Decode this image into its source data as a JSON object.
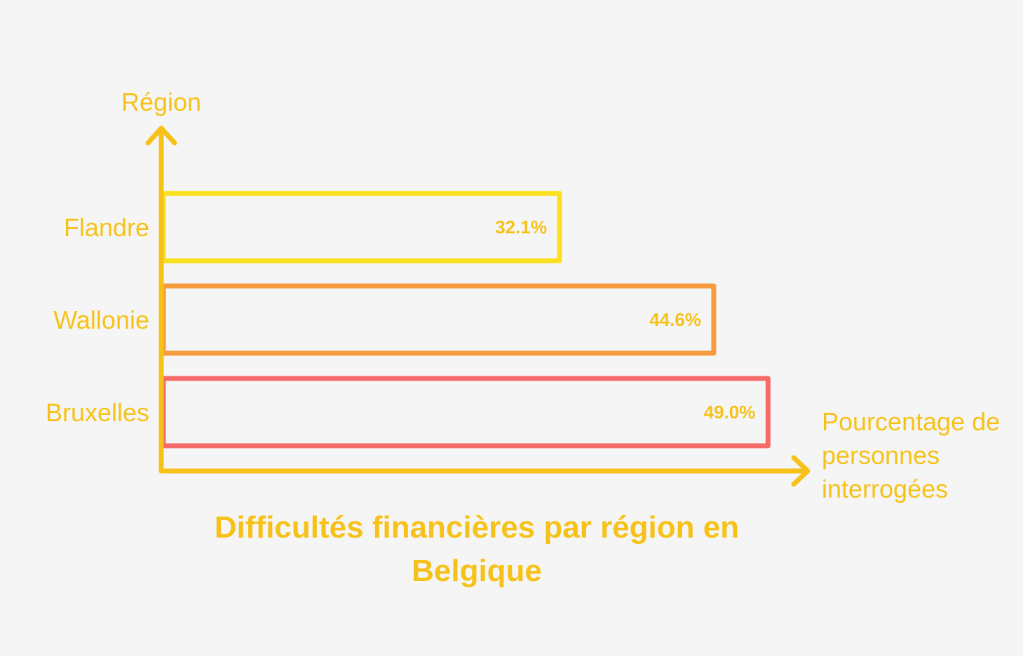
{
  "chart_data": {
    "type": "bar",
    "orientation": "horizontal",
    "title": "Difficultés financières par région en Belgique",
    "ylabel": "Région",
    "xlabel": "Pourcentage de personnes interrogées",
    "categories": [
      "Flandre",
      "Wallonie",
      "Bruxelles"
    ],
    "values": [
      32.1,
      44.6,
      49.0
    ],
    "value_labels": [
      "32.1%",
      "44.6%",
      "49.0%"
    ],
    "bar_colors": [
      "#fbe01e",
      "#f79b3f",
      "#f76a6a"
    ],
    "axis_color": "#f6c21a",
    "text_color": "#f6c21a",
    "grid": false,
    "legend": "none"
  }
}
